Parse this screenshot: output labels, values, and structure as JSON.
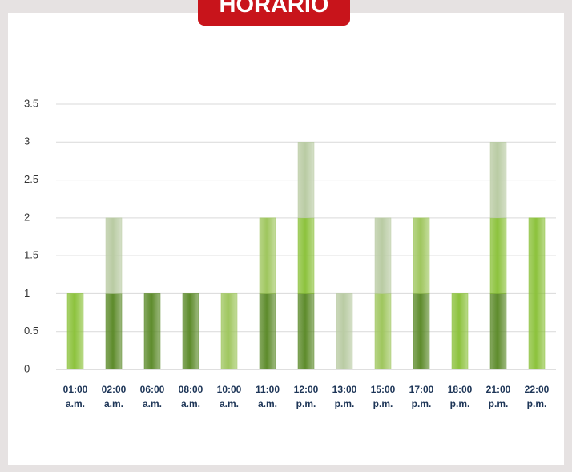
{
  "chart_data": {
    "type": "bar",
    "title": "HORARIO",
    "categories": [
      "01:00 a.m.",
      "02:00 a.m.",
      "06:00 a.m.",
      "08:00 a.m.",
      "10:00 a.m.",
      "11:00 a.m.",
      "12:00 p.m.",
      "13:00 p.m.",
      "15:00 p.m.",
      "17:00 p.m.",
      "18:00 p.m.",
      "21:00 p.m.",
      "22:00 p.m."
    ],
    "series": [
      {
        "color": "#5d8b2b",
        "values": [
          null,
          1,
          1,
          1,
          null,
          1,
          1,
          null,
          null,
          1,
          null,
          1,
          null
        ]
      },
      {
        "color": "#8cc23c",
        "values": [
          1,
          null,
          null,
          null,
          null,
          null,
          1,
          null,
          null,
          null,
          1,
          1,
          2
        ]
      },
      {
        "color": "#9fc65e",
        "values": [
          null,
          null,
          null,
          null,
          1,
          1,
          null,
          null,
          1,
          1,
          null,
          null,
          null
        ]
      },
      {
        "color": "#b9cba3",
        "values": [
          null,
          1,
          null,
          null,
          null,
          null,
          1,
          1,
          1,
          null,
          null,
          1,
          null
        ]
      }
    ],
    "stacked": true,
    "ylim": [
      0,
      3.5
    ],
    "yticks": [
      0,
      0.5,
      1,
      1.5,
      2,
      2.5,
      3,
      3.5
    ],
    "grid": true
  }
}
